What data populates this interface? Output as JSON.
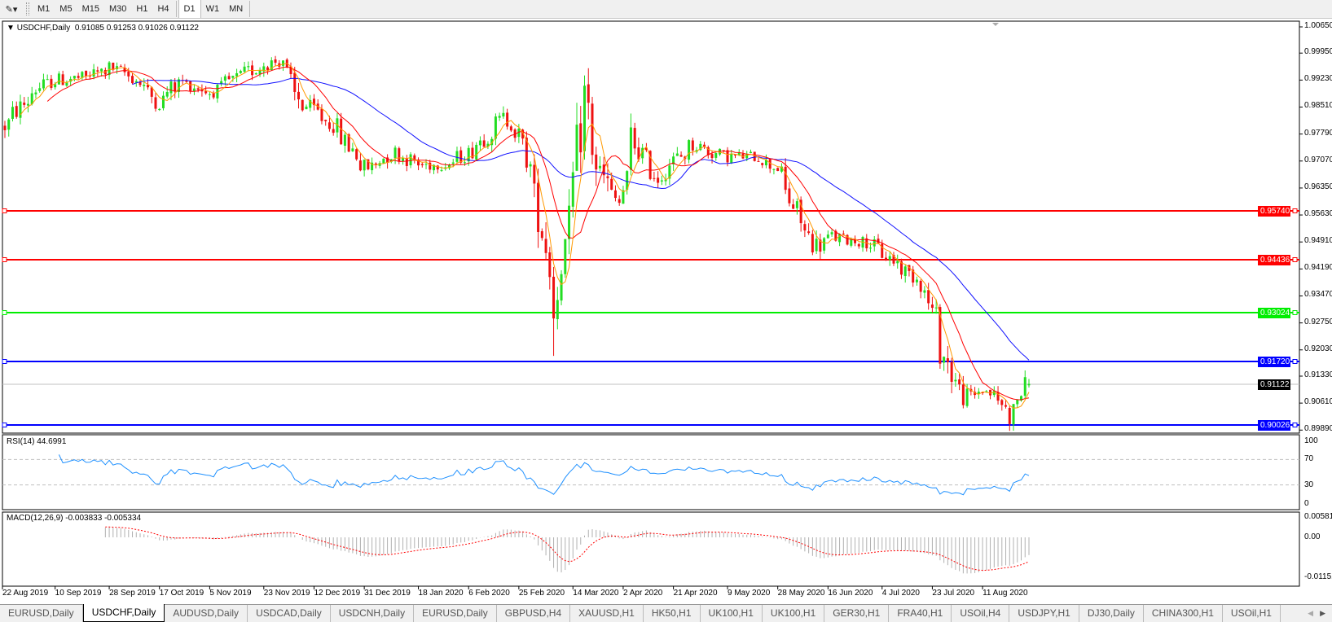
{
  "toolbar": {
    "tool_icon": "line-tool-icon",
    "timeframes": [
      "M1",
      "M5",
      "M15",
      "M30",
      "H1",
      "H4",
      "D1",
      "W1",
      "MN"
    ],
    "active_timeframe": "D1"
  },
  "chart": {
    "symbol_label": "USDCHF,Daily",
    "ohlc": "0.91085 0.91253 0.91026 0.91122",
    "price_axis": [
      "1.00650",
      "0.99950",
      "0.99230",
      "0.98510",
      "0.97790",
      "0.97070",
      "0.96350",
      "0.95630",
      "0.94910",
      "0.94190",
      "0.93470",
      "0.92750",
      "0.92030",
      "0.91330",
      "0.90610",
      "0.89890"
    ],
    "horizontal_lines": [
      {
        "price": "0.95740",
        "color": "#ff0000"
      },
      {
        "price": "0.94436",
        "color": "#ff0000"
      },
      {
        "price": "0.93024",
        "color": "#00ee00"
      },
      {
        "price": "0.91720",
        "color": "#0000ff"
      },
      {
        "price": "0.90026",
        "color": "#0000ff"
      }
    ],
    "current_price": "0.91122",
    "colors": {
      "up": "#22dd22",
      "down": "#ee1111",
      "ma_fast": "#ff9900",
      "ma_mid": "#ff0000",
      "ma_slow": "#1010ff",
      "rsi": "#1e90ff",
      "macd_hist": "#b0b0b0",
      "macd_signal": "#ff0000"
    }
  },
  "rsi": {
    "label": "RSI(14) 44.6991",
    "axis": [
      "100",
      "70",
      "30",
      "0"
    ],
    "levels": [
      70,
      30
    ]
  },
  "macd": {
    "label": "MACD(12,26,9) -0.003833 -0.005334",
    "axis": [
      "0.005818",
      "0.00",
      "-0.01151"
    ]
  },
  "date_axis": [
    "22 Aug 2019",
    "10 Sep 2019",
    "28 Sep 2019",
    "17 Oct 2019",
    "5 Nov 2019",
    "23 Nov 2019",
    "12 Dec 2019",
    "31 Dec 2019",
    "18 Jan 2020",
    "6 Feb 2020",
    "25 Feb 2020",
    "14 Mar 2020",
    "2 Apr 2020",
    "21 Apr 2020",
    "9 May 2020",
    "28 May 2020",
    "16 Jun 2020",
    "4 Jul 2020",
    "23 Jul 2020",
    "11 Aug 2020"
  ],
  "tabs": [
    "EURUSD,Daily",
    "USDCHF,Daily",
    "AUDUSD,Daily",
    "USDCAD,Daily",
    "USDCNH,Daily",
    "EURUSD,Daily",
    "GBPUSD,H4",
    "XAUUSD,H1",
    "HK50,H1",
    "UK100,H1",
    "UK100,H1",
    "GER30,H1",
    "FRA40,H1",
    "USOil,H4",
    "USDJPY,H1",
    "DJ30,Daily",
    "CHINA300,H1",
    "USOil,H1"
  ],
  "active_tab": 1,
  "chart_data": {
    "type": "candlestick",
    "symbol": "USDCHF",
    "timeframe": "Daily",
    "ylim": [
      0.8989,
      1.0065
    ],
    "approx_close_path": [
      [
        "2019-08-22",
        0.98
      ],
      [
        "2019-09-03",
        0.99
      ],
      [
        "2019-09-10",
        0.9922
      ],
      [
        "2019-09-20",
        0.993
      ],
      [
        "2019-09-30",
        0.9956
      ],
      [
        "2019-10-08",
        0.993
      ],
      [
        "2019-10-17",
        0.9865
      ],
      [
        "2019-10-25",
        0.992
      ],
      [
        "2019-11-05",
        0.9889
      ],
      [
        "2019-11-12",
        0.992
      ],
      [
        "2019-11-25",
        0.9967
      ],
      [
        "2019-12-02",
        0.9978
      ],
      [
        "2019-12-05",
        0.9876
      ],
      [
        "2019-12-12",
        0.9843
      ],
      [
        "2019-12-20",
        0.9798
      ],
      [
        "2019-12-31",
        0.9685
      ],
      [
        "2020-01-10",
        0.973
      ],
      [
        "2020-01-20",
        0.9696
      ],
      [
        "2020-01-30",
        0.97
      ],
      [
        "2020-02-06",
        0.9728
      ],
      [
        "2020-02-19",
        0.982
      ],
      [
        "2020-02-25",
        0.9776
      ],
      [
        "2020-03-03",
        0.9572
      ],
      [
        "2020-03-09",
        0.93
      ],
      [
        "2020-03-12",
        0.9481
      ],
      [
        "2020-03-16",
        0.965
      ],
      [
        "2020-03-19",
        0.9876
      ],
      [
        "2020-03-25",
        0.9663
      ],
      [
        "2020-04-01",
        0.9594
      ],
      [
        "2020-04-06",
        0.9763
      ],
      [
        "2020-04-15",
        0.9663
      ],
      [
        "2020-04-21",
        0.9707
      ],
      [
        "2020-04-28",
        0.9752
      ],
      [
        "2020-05-08",
        0.9719
      ],
      [
        "2020-05-20",
        0.9719
      ],
      [
        "2020-05-28",
        0.969
      ],
      [
        "2020-06-05",
        0.955
      ],
      [
        "2020-06-11",
        0.9481
      ],
      [
        "2020-06-17",
        0.9504
      ],
      [
        "2020-06-30",
        0.949
      ],
      [
        "2020-07-06",
        0.9459
      ],
      [
        "2020-07-14",
        0.9413
      ],
      [
        "2020-07-20",
        0.938
      ],
      [
        "2020-07-24",
        0.9278
      ],
      [
        "2020-07-31",
        0.912
      ],
      [
        "2020-08-05",
        0.9074
      ],
      [
        "2020-08-11",
        0.9098
      ],
      [
        "2020-08-18",
        0.906
      ],
      [
        "2020-08-20",
        0.9029
      ],
      [
        "2020-08-27",
        0.9112
      ]
    ],
    "last_bar": {
      "open": 0.91085,
      "high": 0.91253,
      "low": 0.91026,
      "close": 0.91122
    }
  }
}
